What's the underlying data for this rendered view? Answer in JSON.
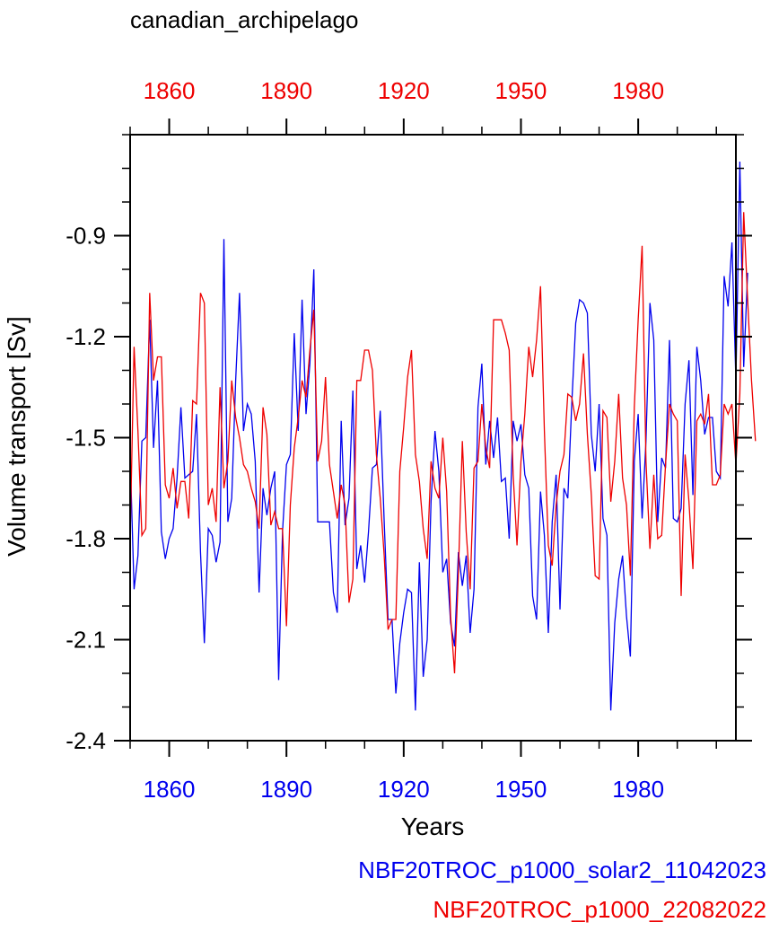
{
  "chart_data": {
    "type": "line",
    "title": "canadian_archipelago",
    "xlabel": "Years",
    "ylabel": "Volume transport [Sv]",
    "xlim": [
      1850,
      2005
    ],
    "ylim": [
      -2.4,
      -0.6
    ],
    "yticks": [
      -0.9,
      -1.2,
      -1.5,
      -1.8,
      -2.1,
      -2.4
    ],
    "ytick_labels": [
      "-0.9",
      "-1.2",
      "-1.5",
      "-1.8",
      "-2.1",
      "-2.4"
    ],
    "xticks": [
      1860,
      1890,
      1920,
      1950,
      1980
    ],
    "xtick_labels_bottom": [
      "1860",
      "1890",
      "1920",
      "1950",
      "1980"
    ],
    "xtick_labels_top": [
      "1860",
      "1890",
      "1920",
      "1950",
      "1980"
    ],
    "legend_placement": "bottom-right",
    "series": [
      {
        "name": "NBF20TROC_p1000_solar2_11042023",
        "color": "#0000ee",
        "x_start": 1850,
        "values": [
          -1.55,
          -1.95,
          -1.85,
          -1.51,
          -1.5,
          -1.15,
          -1.53,
          -1.33,
          -1.78,
          -1.86,
          -1.8,
          -1.77,
          -1.62,
          -1.41,
          -1.62,
          -1.61,
          -1.6,
          -1.43,
          -1.84,
          -2.11,
          -1.77,
          -1.79,
          -1.87,
          -1.81,
          -0.91,
          -1.75,
          -1.68,
          -1.33,
          -1.07,
          -1.48,
          -1.4,
          -1.43,
          -1.57,
          -1.96,
          -1.65,
          -1.73,
          -1.65,
          -1.6,
          -2.22,
          -1.78,
          -1.58,
          -1.55,
          -1.19,
          -1.48,
          -1.09,
          -1.43,
          -1.28,
          -1.0,
          -1.75,
          -1.75,
          -1.75,
          -1.75,
          -1.96,
          -2.02,
          -1.45,
          -1.76,
          -1.68,
          -1.36,
          -1.89,
          -1.82,
          -1.93,
          -1.78,
          -1.59,
          -1.58,
          -1.42,
          -1.75,
          -2.04,
          -2.04,
          -2.26,
          -2.11,
          -2.02,
          -1.95,
          -1.96,
          -2.31,
          -1.87,
          -2.21,
          -2.1,
          -1.69,
          -1.48,
          -1.6,
          -1.9,
          -1.86,
          -2.05,
          -2.12,
          -1.84,
          -1.94,
          -1.85,
          -2.08,
          -1.95,
          -1.41,
          -1.28,
          -1.58,
          -1.45,
          -1.56,
          -1.44,
          -1.63,
          -1.62,
          -1.8,
          -1.45,
          -1.51,
          -1.46,
          -1.61,
          -1.65,
          -1.97,
          -2.04,
          -1.66,
          -1.79,
          -2.08,
          -1.75,
          -1.61,
          -2.01,
          -1.65,
          -1.68,
          -1.4,
          -1.16,
          -1.09,
          -1.1,
          -1.13,
          -1.49,
          -1.6,
          -1.4,
          -1.74,
          -1.79,
          -2.31,
          -2.05,
          -1.92,
          -1.85,
          -2.03,
          -2.15,
          -1.57,
          -1.43,
          -1.74,
          -1.51,
          -1.1,
          -1.21,
          -1.75,
          -1.56,
          -1.59,
          -1.21,
          -1.74,
          -1.75,
          -1.71,
          -1.4,
          -1.27,
          -1.67,
          -1.23,
          -1.33,
          -1.49,
          -1.44,
          -1.44,
          -1.6,
          -1.62,
          -1.02,
          -1.11,
          -0.92,
          -1.33,
          -0.68,
          -1.29,
          -1.01
        ]
      },
      {
        "name": "NBF20TROC_p1000_22082022",
        "color": "#ee0000",
        "x_start": 1850,
        "values": [
          -1.8,
          -1.23,
          -1.48,
          -1.79,
          -1.77,
          -1.07,
          -1.33,
          -1.26,
          -1.26,
          -1.64,
          -1.68,
          -1.59,
          -1.71,
          -1.63,
          -1.63,
          -1.74,
          -1.39,
          -1.4,
          -1.07,
          -1.1,
          -1.7,
          -1.65,
          -1.75,
          -1.35,
          -1.65,
          -1.57,
          -1.33,
          -1.44,
          -1.5,
          -1.58,
          -1.6,
          -1.65,
          -1.69,
          -1.77,
          -1.41,
          -1.49,
          -1.76,
          -1.72,
          -1.77,
          -1.77,
          -2.06,
          -1.7,
          -1.53,
          -1.44,
          -1.33,
          -1.38,
          -1.24,
          -1.12,
          -1.57,
          -1.51,
          -1.32,
          -1.58,
          -1.66,
          -1.74,
          -1.64,
          -1.7,
          -1.99,
          -1.92,
          -1.33,
          -1.33,
          -1.24,
          -1.24,
          -1.3,
          -1.55,
          -1.68,
          -1.85,
          -2.07,
          -2.04,
          -2.04,
          -1.6,
          -1.47,
          -1.32,
          -1.24,
          -1.55,
          -1.63,
          -1.77,
          -1.86,
          -1.57,
          -1.65,
          -1.68,
          -1.5,
          -1.66,
          -2.03,
          -2.2,
          -1.9,
          -1.51,
          -1.78,
          -1.95,
          -1.59,
          -1.57,
          -1.4,
          -1.53,
          -1.59,
          -1.15,
          -1.15,
          -1.15,
          -1.19,
          -1.24,
          -1.61,
          -1.82,
          -1.57,
          -1.43,
          -1.23,
          -1.32,
          -1.21,
          -1.05,
          -1.48,
          -1.82,
          -1.88,
          -1.7,
          -1.6,
          -1.55,
          -1.37,
          -1.38,
          -1.45,
          -1.4,
          -1.25,
          -1.49,
          -1.67,
          -1.91,
          -1.92,
          -1.42,
          -1.44,
          -1.69,
          -1.57,
          -1.37,
          -1.62,
          -1.7,
          -1.91,
          -1.41,
          -1.15,
          -0.93,
          -1.57,
          -1.83,
          -1.61,
          -1.8,
          -1.79,
          -1.58,
          -1.4,
          -1.43,
          -1.45,
          -1.97,
          -1.55,
          -1.69,
          -1.89,
          -1.45,
          -1.43,
          -1.46,
          -1.37,
          -1.64,
          -1.64,
          -1.61,
          -1.4,
          -1.43,
          -1.4,
          -1.58,
          -1.37,
          -0.83,
          -1.09,
          -1.33,
          -1.51
        ]
      }
    ]
  }
}
